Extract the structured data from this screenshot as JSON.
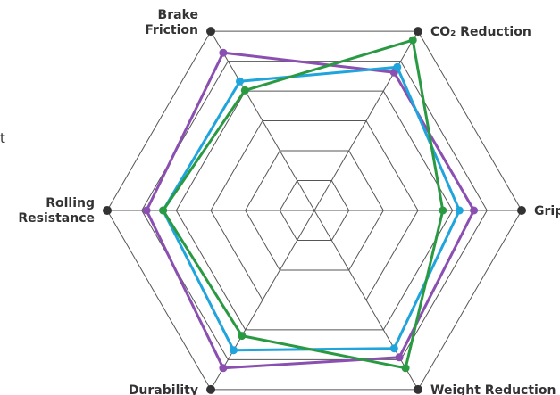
{
  "chart_data": {
    "type": "radar",
    "title": "",
    "axes": [
      {
        "name": "co2",
        "label_lines": [
          "CO₂ Reduction"
        ]
      },
      {
        "name": "grip",
        "label_lines": [
          "Grip"
        ]
      },
      {
        "name": "weight",
        "label_lines": [
          "Weight Reduction"
        ]
      },
      {
        "name": "durability",
        "label_lines": [
          "Durability"
        ]
      },
      {
        "name": "rolling",
        "label_lines": [
          "Rolling",
          "Resistance"
        ]
      },
      {
        "name": "brake",
        "label_lines": [
          "Brake",
          "Friction"
        ]
      }
    ],
    "scale": {
      "min": 0,
      "max": 1,
      "rings": 6
    },
    "grid": true,
    "series": [
      {
        "color": "#8a4fb0",
        "values": [
          0.77,
          0.77,
          0.82,
          0.88,
          0.81,
          0.88
        ]
      },
      {
        "color": "#1fa4dc",
        "values": [
          0.8,
          0.7,
          0.77,
          0.78,
          0.73,
          0.72
        ]
      },
      {
        "color": "#2a9a42",
        "values": [
          0.95,
          0.62,
          0.88,
          0.7,
          0.73,
          0.67
        ]
      }
    ]
  },
  "stray_text": "t",
  "colors": {
    "grid": "#555555",
    "axis_dot": "#333333"
  }
}
